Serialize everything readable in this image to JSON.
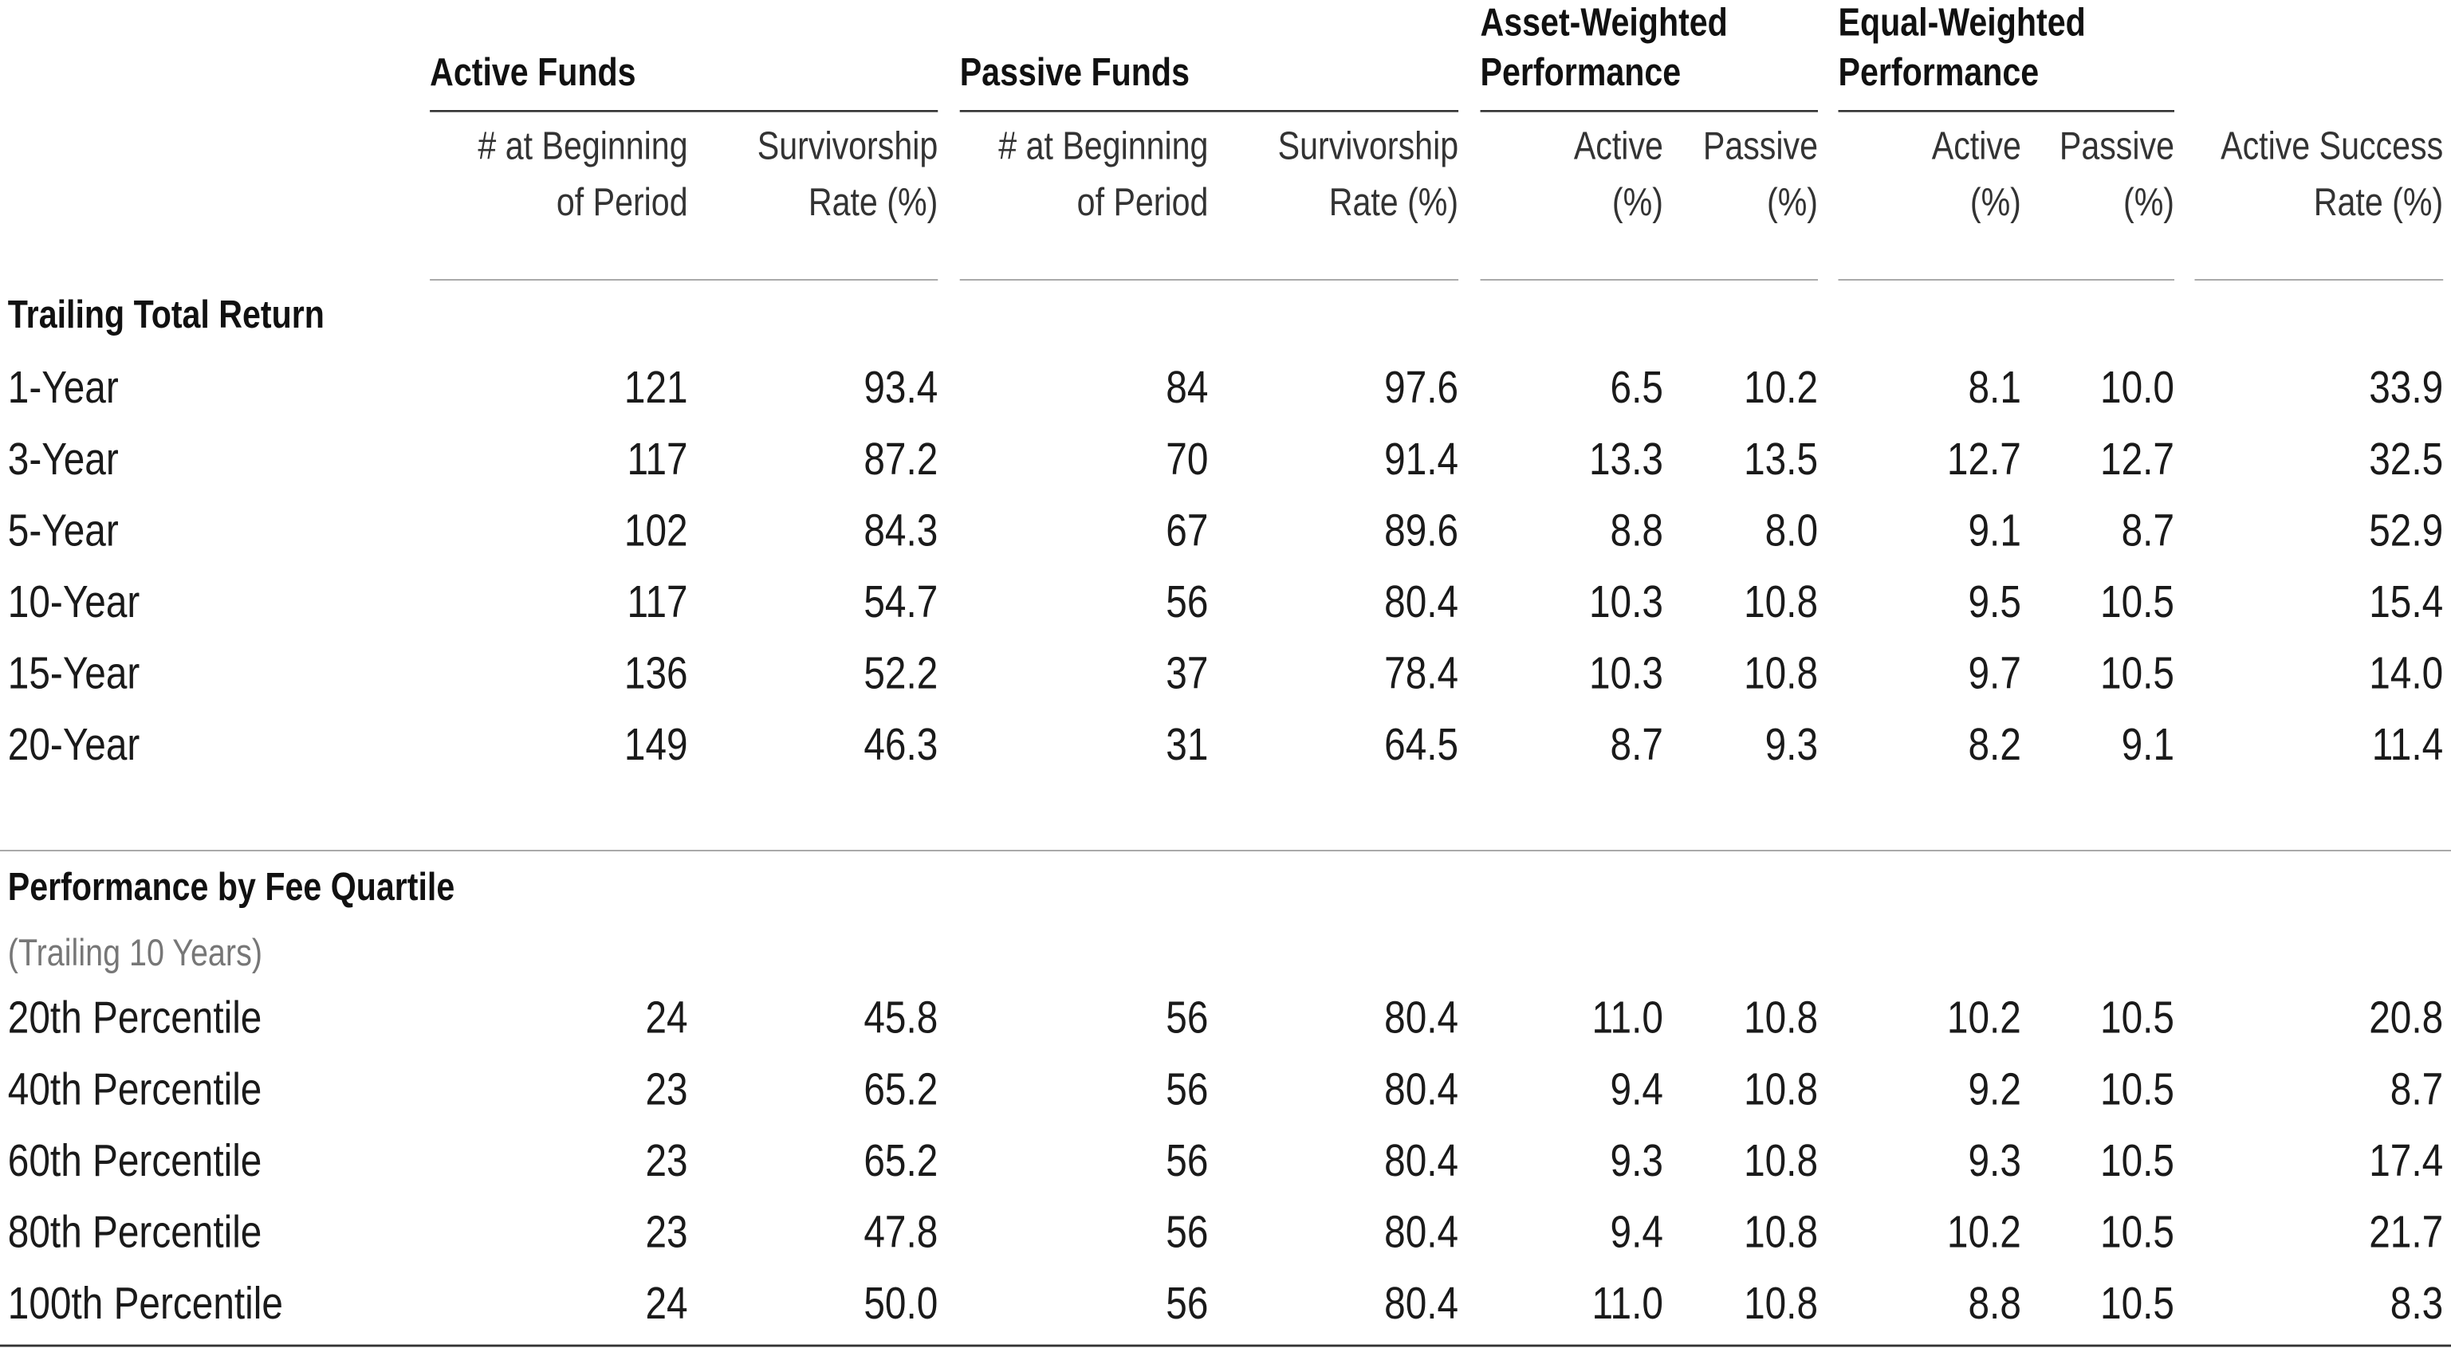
{
  "header": {
    "groups": [
      [
        "Active Funds"
      ],
      [
        "Passive Funds"
      ],
      [
        "Asset-Weighted",
        "Performance"
      ],
      [
        "Equal-Weighted",
        "Performance"
      ]
    ],
    "columns": [
      [
        "# at Beginning",
        "of Period"
      ],
      [
        "Survivorship",
        "Rate (%)"
      ],
      [
        "# at Beginning",
        "of Period"
      ],
      [
        "Survivorship",
        "Rate (%)"
      ],
      [
        "Active",
        "(%)"
      ],
      [
        "Passive",
        "(%)"
      ],
      [
        "Active",
        "(%)"
      ],
      [
        "Passive",
        "(%)"
      ],
      [
        "Active Success",
        "Rate (%)"
      ]
    ]
  },
  "sections": [
    {
      "title": "Trailing Total Return",
      "rows": [
        [
          "1-Year",
          "121",
          "93.4",
          "84",
          "97.6",
          "6.5",
          "10.2",
          "8.1",
          "10.0",
          "33.9"
        ],
        [
          "3-Year",
          "117",
          "87.2",
          "70",
          "91.4",
          "13.3",
          "13.5",
          "12.7",
          "12.7",
          "32.5"
        ],
        [
          "5-Year",
          "102",
          "84.3",
          "67",
          "89.6",
          "8.8",
          "8.0",
          "9.1",
          "8.7",
          "52.9"
        ],
        [
          "10-Year",
          "117",
          "54.7",
          "56",
          "80.4",
          "10.3",
          "10.8",
          "9.5",
          "10.5",
          "15.4"
        ],
        [
          "15-Year",
          "136",
          "52.2",
          "37",
          "78.4",
          "10.3",
          "10.8",
          "9.7",
          "10.5",
          "14.0"
        ],
        [
          "20-Year",
          "149",
          "46.3",
          "31",
          "64.5",
          "8.7",
          "9.3",
          "8.2",
          "9.1",
          "11.4"
        ]
      ]
    },
    {
      "title": "Performance by Fee Quartile",
      "subtitle": "(Trailing 10 Years)",
      "rows": [
        [
          "20th Percentile",
          "24",
          "45.8",
          "56",
          "80.4",
          "11.0",
          "10.8",
          "10.2",
          "10.5",
          "20.8"
        ],
        [
          "40th Percentile",
          "23",
          "65.2",
          "56",
          "80.4",
          "9.4",
          "10.8",
          "9.2",
          "10.5",
          "8.7"
        ],
        [
          "60th Percentile",
          "23",
          "65.2",
          "56",
          "80.4",
          "9.3",
          "10.8",
          "9.3",
          "10.5",
          "17.4"
        ],
        [
          "80th Percentile",
          "23",
          "47.8",
          "56",
          "80.4",
          "9.4",
          "10.8",
          "10.2",
          "10.5",
          "21.7"
        ],
        [
          "100th Percentile",
          "24",
          "50.0",
          "56",
          "80.4",
          "11.0",
          "10.8",
          "8.8",
          "10.5",
          "8.3"
        ]
      ]
    }
  ]
}
